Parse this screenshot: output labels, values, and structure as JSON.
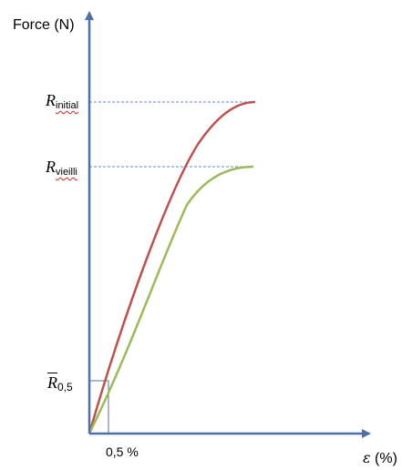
{
  "axes": {
    "y_label": "Force (N)",
    "x_symbol": "ε",
    "x_unit": "(%)",
    "x_tick": "0,5 %"
  },
  "levels": {
    "initial": {
      "symbol": "R",
      "subscript": "initial"
    },
    "vieilli": {
      "symbol": "R",
      "subscript": "vieilli"
    },
    "r05": {
      "symbol": "R",
      "subscript": "0,5"
    }
  },
  "colors": {
    "axis": "#4f6fa8",
    "guide": "#5b8bd0",
    "curve_initial": "#c0504d",
    "curve_vieilli": "#9bbb59"
  }
}
